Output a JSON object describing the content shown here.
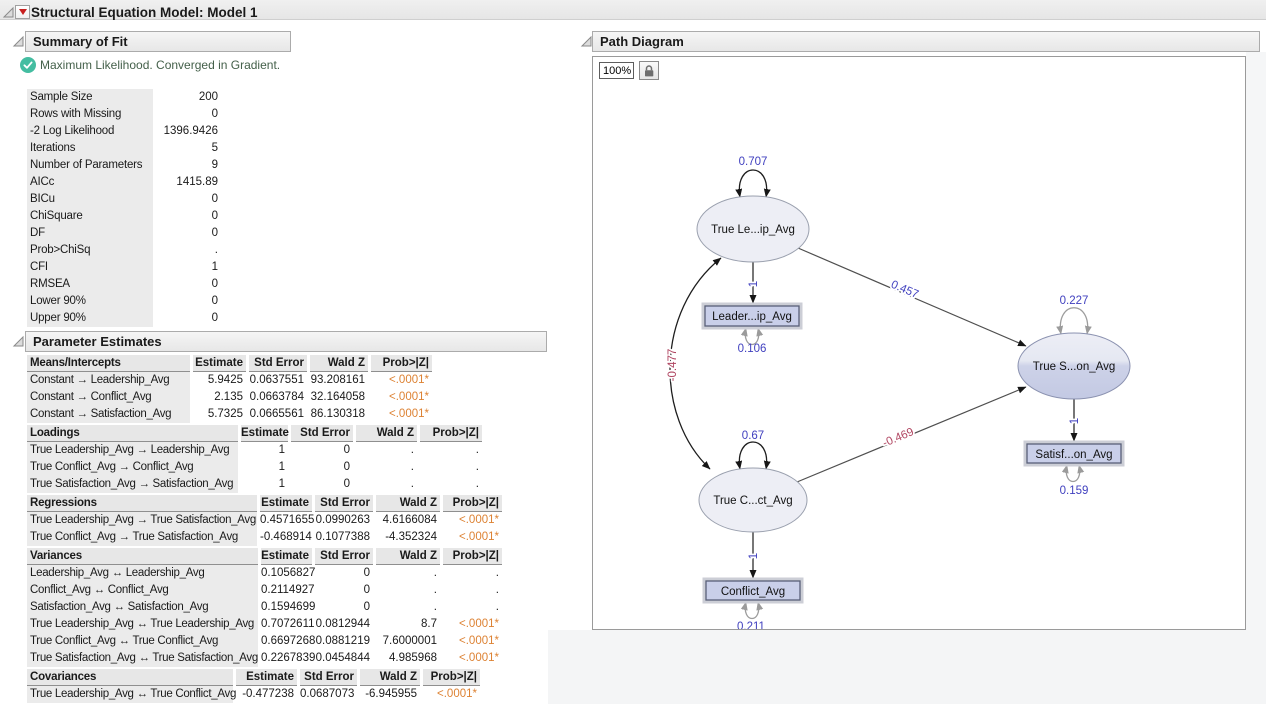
{
  "window": {
    "title": "Structural Equation Model: Model 1"
  },
  "summary_of_fit": {
    "title": "Summary of Fit",
    "status_message": "Maximum Likelihood. Converged in Gradient.",
    "rows": [
      [
        "Sample Size",
        "200"
      ],
      [
        "Rows with Missing",
        "0"
      ],
      [
        "-2 Log Likelihood",
        "1396.9426"
      ],
      [
        "Iterations",
        "5"
      ],
      [
        "Number of Parameters",
        "9"
      ],
      [
        "AICc",
        "1415.89"
      ],
      [
        "BICu",
        "0"
      ],
      [
        "ChiSquare",
        "0"
      ],
      [
        "DF",
        "0"
      ],
      [
        "Prob>ChiSq",
        "."
      ],
      [
        "CFI",
        "1"
      ],
      [
        "RMSEA",
        "0"
      ],
      [
        "Lower 90%",
        "0"
      ],
      [
        "Upper 90%",
        "0"
      ]
    ]
  },
  "parameter_estimates": {
    "title": "Parameter Estimates",
    "value_headers": [
      "Estimate",
      "Std Error",
      "Wald Z",
      "Prob>|Z|"
    ],
    "tables": [
      {
        "name": "Means/Intercepts",
        "rows": [
          [
            "Constant → Leadership_Avg",
            "5.9425",
            "0.0637551",
            "93.208161",
            "<.0001*"
          ],
          [
            "Constant → Conflict_Avg",
            "2.135",
            "0.0663784",
            "32.164058",
            "<.0001*"
          ],
          [
            "Constant → Satisfaction_Avg",
            "5.7325",
            "0.0665561",
            "86.130318",
            "<.0001*"
          ]
        ]
      },
      {
        "name": "Loadings",
        "rows": [
          [
            "True Leadership_Avg → Leadership_Avg",
            "1",
            "0",
            ".",
            "."
          ],
          [
            "True Conflict_Avg → Conflict_Avg",
            "1",
            "0",
            ".",
            "."
          ],
          [
            "True Satisfaction_Avg → Satisfaction_Avg",
            "1",
            "0",
            ".",
            "."
          ]
        ]
      },
      {
        "name": "Regressions",
        "rows": [
          [
            "True Leadership_Avg → True Satisfaction_Avg",
            "0.4571655",
            "0.0990263",
            "4.6166084",
            "<.0001*"
          ],
          [
            "True Conflict_Avg → True Satisfaction_Avg",
            "-0.468914",
            "0.1077388",
            "-4.352324",
            "<.0001*"
          ]
        ]
      },
      {
        "name": "Variances",
        "rows": [
          [
            "Leadership_Avg ↔ Leadership_Avg",
            "0.1056827",
            "0",
            ".",
            "."
          ],
          [
            "Conflict_Avg ↔ Conflict_Avg",
            "0.2114927",
            "0",
            ".",
            "."
          ],
          [
            "Satisfaction_Avg ↔ Satisfaction_Avg",
            "0.1594699",
            "0",
            ".",
            "."
          ],
          [
            "True Leadership_Avg ↔ True Leadership_Avg",
            "0.7072611",
            "0.0812944",
            "8.7",
            "<.0001*"
          ],
          [
            "True Conflict_Avg ↔ True Conflict_Avg",
            "0.6697268",
            "0.0881219",
            "7.6000001",
            "<.0001*"
          ],
          [
            "True Satisfaction_Avg ↔ True Satisfaction_Avg",
            "0.2267839",
            "0.0454844",
            "4.985968",
            "<.0001*"
          ]
        ]
      },
      {
        "name": "Covariances",
        "rows": [
          [
            "True Leadership_Avg ↔ True Conflict_Avg",
            "-0.477238",
            "0.0687073",
            "-6.945955",
            "<.0001*"
          ]
        ]
      }
    ]
  },
  "path_diagram": {
    "title": "Path Diagram",
    "zoom_value": "100%",
    "nodes": {
      "latent_leadership": "True Le...ip_Avg",
      "latent_conflict": "True C...ct_Avg",
      "latent_satisfaction": "True S...on_Avg",
      "manifest_leadership": "Leader...ip_Avg",
      "manifest_conflict": "Conflict_Avg",
      "manifest_satisfaction": "Satisf...on_Avg"
    },
    "labels": {
      "latent_leadership_variance": "0.707",
      "latent_conflict_variance": "0.67",
      "latent_satisfaction_variance": "0.227",
      "manifest_leadership_error": "0.106",
      "manifest_conflict_error": "0.211",
      "manifest_satisfaction_error": "0.159",
      "loading_leadership": "1",
      "loading_conflict": "1",
      "loading_satisfaction": "1",
      "reg_leadership_satisfaction": "0.457",
      "reg_conflict_satisfaction": "-0.469",
      "cov_leadership_conflict": "-0.477"
    }
  },
  "colors": {
    "positive_label": "#4040bf",
    "negative_label": "#b04561",
    "significant": "#dd8233",
    "status_green": "#44bda1"
  }
}
